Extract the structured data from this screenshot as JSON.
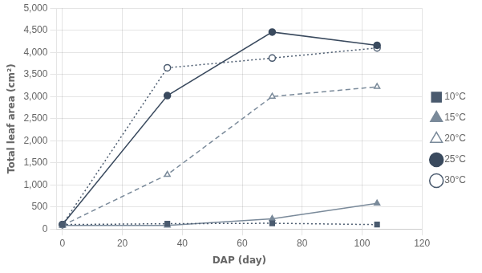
{
  "chart_data": {
    "type": "line",
    "x_label": "DAP (day)",
    "y_label": "Total leaf area (cm²)",
    "x": [
      0,
      35,
      70,
      105
    ],
    "series": [
      {
        "name": "10°C",
        "color": "#4a5a6e",
        "values": [
          100,
          120,
          130,
          100
        ],
        "marker": "square",
        "line_style": "dotted"
      },
      {
        "name": "15°C",
        "color": "#7a8a9a",
        "values": [
          80,
          80,
          230,
          580
        ],
        "marker": "triangle",
        "line_style": "solid"
      },
      {
        "name": "20°C",
        "color": "#7a8a9a",
        "values": [
          80,
          1230,
          3000,
          3220
        ],
        "marker": "open-triangle",
        "line_style": "dashed"
      },
      {
        "name": "25°C",
        "color": "#3a4a5e",
        "values": [
          100,
          3020,
          4460,
          4160
        ],
        "marker": "circle",
        "line_style": "solid"
      },
      {
        "name": "30°C",
        "color": "#4a5a6e",
        "values": [
          100,
          3650,
          3870,
          4100
        ],
        "marker": "open-circle",
        "line_style": "dotted"
      }
    ],
    "xlim": [
      -2,
      120
    ],
    "ylim": [
      0,
      5000
    ],
    "xticks": [
      0,
      20,
      40,
      60,
      80,
      100,
      120
    ],
    "yticks": [
      0,
      500,
      {
        "value": 1000,
        "label": "1,000"
      },
      {
        "value": 1500,
        "label": "1,500"
      },
      {
        "value": 2000,
        "label": "2,000"
      },
      {
        "value": 2500,
        "label": "2,500"
      },
      {
        "value": 3000,
        "label": "3,000"
      },
      {
        "value": 3500,
        "label": "3,500"
      },
      {
        "value": 4000,
        "label": "4,000"
      },
      {
        "value": 4500,
        "label": "4,500"
      },
      {
        "value": 5000,
        "label": "5,000"
      }
    ],
    "grid": true,
    "legend": "right"
  }
}
